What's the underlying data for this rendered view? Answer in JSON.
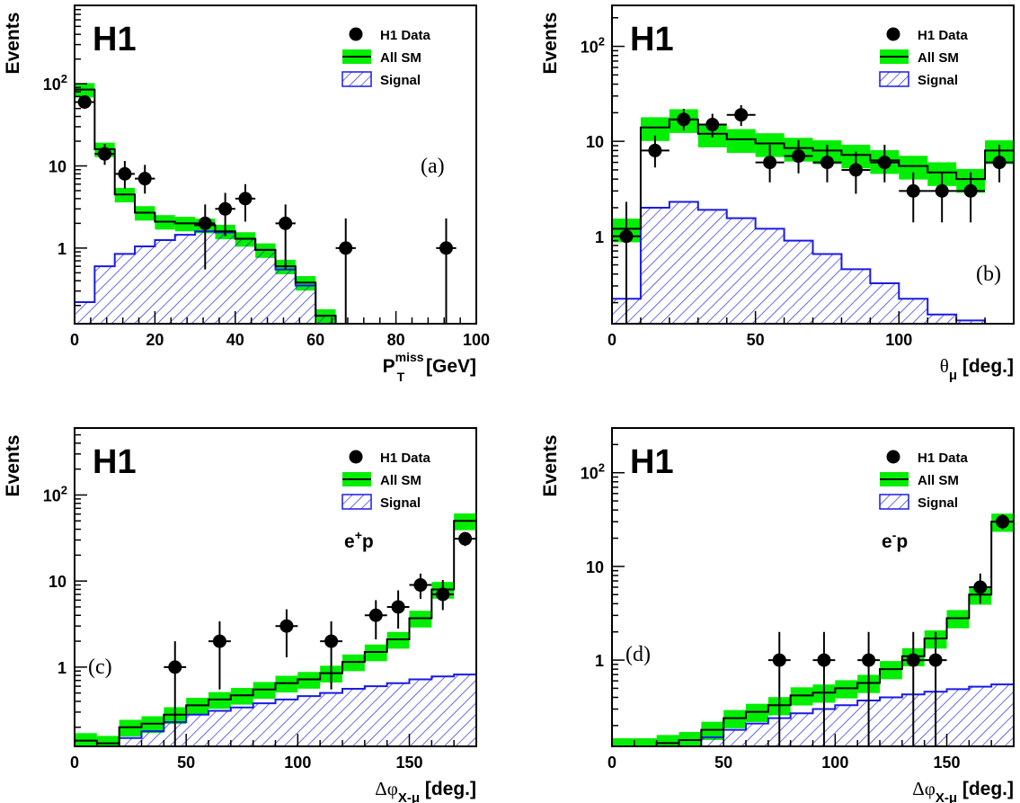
{
  "experiment_label": "H1",
  "legend": {
    "data": "H1 Data",
    "sm": "All SM",
    "signal": "Signal"
  },
  "colors": {
    "sm_band": "#00ee00",
    "signal_hatch": "#1a1ae6",
    "data": "#000000"
  },
  "chart_data": [
    {
      "type": "histogram",
      "panel_tag": "(a)",
      "ylabel": "Events",
      "xlabel_main": "P",
      "xlabel_sup": "miss",
      "xlabel_sub": "T",
      "xlabel_unit": " [GeV]",
      "y_scale": "log",
      "xlim": [
        0,
        100
      ],
      "ylim": [
        0.12,
        900
      ],
      "x_ticks": [
        0,
        20,
        40,
        60,
        80,
        100
      ],
      "x_tick_labels": [
        "0",
        "20",
        "40",
        "60",
        "80",
        "100"
      ],
      "y_ticks": [
        1,
        10,
        100
      ],
      "y_tick_labels": [
        "1",
        "10",
        "10^2"
      ],
      "bin_edges": [
        0,
        5,
        10,
        15,
        20,
        25,
        30,
        35,
        40,
        45,
        50,
        55,
        60,
        65,
        70,
        75,
        80,
        85,
        90,
        95,
        100
      ],
      "sm": [
        85,
        16,
        4.5,
        2.7,
        2.1,
        2.0,
        1.9,
        1.6,
        1.3,
        0.95,
        0.6,
        0.38,
        0.15,
        0.1,
        0.1,
        0.1,
        0.1,
        0.1,
        0.1,
        0.1
      ],
      "sm_err_frac": 0.2,
      "signal": [
        0.22,
        0.6,
        0.85,
        1.05,
        1.25,
        1.45,
        1.6,
        1.55,
        1.3,
        0.95,
        0.55,
        0.35,
        0.15,
        0.1,
        0.1,
        0.1,
        0.1,
        0.1,
        0.1,
        0.1
      ],
      "data_points": [
        {
          "x": 2.5,
          "y": 60,
          "lo": 50,
          "hi": 72
        },
        {
          "x": 7.5,
          "y": 14,
          "lo": 10.3,
          "hi": 18.5
        },
        {
          "x": 12.5,
          "y": 8,
          "lo": 5.3,
          "hi": 11.5
        },
        {
          "x": 17.5,
          "y": 7,
          "lo": 4.6,
          "hi": 10.3
        },
        {
          "x": 32.5,
          "y": 2,
          "lo": 0.55,
          "hi": 3.4
        },
        {
          "x": 37.5,
          "y": 3,
          "lo": 1.4,
          "hi": 4.7
        },
        {
          "x": 42.5,
          "y": 4,
          "lo": 2.1,
          "hi": 6.0
        },
        {
          "x": 52.5,
          "y": 2,
          "lo": 0.55,
          "hi": 3.4
        },
        {
          "x": 67.5,
          "y": 1,
          "lo": 0.12,
          "hi": 2.3
        },
        {
          "x": 92.5,
          "y": 1,
          "lo": 0.12,
          "hi": 2.3
        }
      ]
    },
    {
      "type": "histogram",
      "panel_tag": "(b)",
      "ylabel": "Events",
      "xlabel_main": "θ",
      "xlabel_sub": "μ",
      "xlabel_unit": " [deg.]",
      "y_scale": "log",
      "xlim": [
        0,
        140
      ],
      "ylim": [
        0.12,
        270
      ],
      "x_ticks": [
        0,
        50,
        100
      ],
      "x_tick_labels": [
        "0",
        "50",
        "100"
      ],
      "y_ticks": [
        1,
        10,
        100
      ],
      "y_tick_labels": [
        "1",
        "10",
        "10^2"
      ],
      "bin_edges": [
        0,
        10,
        20,
        30,
        40,
        50,
        60,
        70,
        80,
        90,
        100,
        110,
        120,
        130,
        140
      ],
      "sm": [
        1.2,
        14,
        17,
        12,
        10.5,
        9.5,
        8.5,
        8,
        7.2,
        6.3,
        5.5,
        4.7,
        4,
        8
      ],
      "sm_err_frac": 0.28,
      "signal": [
        0.22,
        2.0,
        2.3,
        1.9,
        1.55,
        1.2,
        0.9,
        0.65,
        0.45,
        0.32,
        0.22,
        0.15,
        0.13,
        0.12
      ],
      "data_points": [
        {
          "x": 5,
          "y": 1,
          "lo": 0.12,
          "hi": 2.3
        },
        {
          "x": 15,
          "y": 8,
          "lo": 5.3,
          "hi": 11.5
        },
        {
          "x": 25,
          "y": 17,
          "lo": 13,
          "hi": 22
        },
        {
          "x": 35,
          "y": 15,
          "lo": 11,
          "hi": 19.5
        },
        {
          "x": 45,
          "y": 19,
          "lo": 14.5,
          "hi": 24
        },
        {
          "x": 55,
          "y": 6,
          "lo": 3.7,
          "hi": 9.2
        },
        {
          "x": 65,
          "y": 7,
          "lo": 4.6,
          "hi": 10.3
        },
        {
          "x": 75,
          "y": 6,
          "lo": 3.7,
          "hi": 9.2
        },
        {
          "x": 85,
          "y": 5,
          "lo": 2.8,
          "hi": 7.8
        },
        {
          "x": 95,
          "y": 6,
          "lo": 3.7,
          "hi": 9.2
        },
        {
          "x": 105,
          "y": 3,
          "lo": 1.4,
          "hi": 4.7
        },
        {
          "x": 115,
          "y": 3,
          "lo": 1.4,
          "hi": 4.7
        },
        {
          "x": 125,
          "y": 3,
          "lo": 1.4,
          "hi": 4.7
        },
        {
          "x": 135,
          "y": 6,
          "lo": 3.7,
          "hi": 9.2
        }
      ]
    },
    {
      "type": "histogram",
      "panel_tag": "(c)",
      "beam_label_main": "e",
      "beam_label_sup": "+",
      "beam_label_tail": "p",
      "ylabel": "Events",
      "xlabel_main": "Δφ",
      "xlabel_sub": "X-μ",
      "xlabel_unit": " [deg.]",
      "y_scale": "log",
      "xlim": [
        0,
        180
      ],
      "ylim": [
        0.12,
        600
      ],
      "x_ticks": [
        0,
        50,
        100,
        150
      ],
      "x_tick_labels": [
        "0",
        "50",
        "100",
        "150"
      ],
      "y_ticks": [
        1,
        10,
        100
      ],
      "y_tick_labels": [
        "1",
        "10",
        "10^2"
      ],
      "bin_edges": [
        0,
        10,
        20,
        30,
        40,
        50,
        60,
        70,
        80,
        90,
        100,
        110,
        120,
        130,
        140,
        150,
        160,
        170,
        180
      ],
      "sm": [
        0.14,
        0.13,
        0.2,
        0.22,
        0.28,
        0.36,
        0.42,
        0.47,
        0.55,
        0.65,
        0.72,
        0.85,
        1.15,
        1.5,
        2.1,
        3.7,
        8,
        50
      ],
      "sm_err_frac": 0.22,
      "signal": [
        0.12,
        0.1,
        0.15,
        0.18,
        0.23,
        0.28,
        0.31,
        0.34,
        0.38,
        0.42,
        0.46,
        0.5,
        0.56,
        0.6,
        0.65,
        0.72,
        0.78,
        0.82
      ],
      "data_points": [
        {
          "x": 45,
          "y": 1,
          "lo": 0.12,
          "hi": 2.0
        },
        {
          "x": 65,
          "y": 2,
          "lo": 0.55,
          "hi": 3.4
        },
        {
          "x": 95,
          "y": 3,
          "lo": 1.3,
          "hi": 4.7
        },
        {
          "x": 115,
          "y": 2,
          "lo": 0.55,
          "hi": 3.4
        },
        {
          "x": 135,
          "y": 4,
          "lo": 2.1,
          "hi": 6.0
        },
        {
          "x": 145,
          "y": 5,
          "lo": 2.8,
          "hi": 7.8
        },
        {
          "x": 155,
          "y": 9,
          "lo": 6.2,
          "hi": 12.2
        },
        {
          "x": 165,
          "y": 7,
          "lo": 4.6,
          "hi": 10.3
        },
        {
          "x": 175,
          "y": 31,
          "lo": 25.5,
          "hi": 37
        }
      ]
    },
    {
      "type": "histogram",
      "panel_tag": "(d)",
      "beam_label_main": "e",
      "beam_label_sup": "-",
      "beam_label_tail": "p",
      "ylabel": "Events",
      "xlabel_main": "Δφ",
      "xlabel_sub": "X-μ",
      "xlabel_unit": " [deg.]",
      "y_scale": "log",
      "xlim": [
        0,
        180
      ],
      "ylim": [
        0.12,
        300
      ],
      "x_ticks": [
        0,
        50,
        100,
        150
      ],
      "x_tick_labels": [
        "0",
        "50",
        "100",
        "150"
      ],
      "y_ticks": [
        1,
        10,
        100
      ],
      "y_tick_labels": [
        "1",
        "10",
        "10^2"
      ],
      "bin_edges": [
        0,
        10,
        20,
        30,
        40,
        50,
        60,
        70,
        80,
        90,
        100,
        110,
        120,
        130,
        140,
        150,
        160,
        170,
        180
      ],
      "sm": [
        0.12,
        0.12,
        0.13,
        0.14,
        0.18,
        0.24,
        0.28,
        0.33,
        0.42,
        0.45,
        0.5,
        0.57,
        0.8,
        1.1,
        1.7,
        2.8,
        5,
        30
      ],
      "sm_err_frac": 0.22,
      "signal": [
        0.12,
        0.12,
        0.12,
        0.12,
        0.15,
        0.18,
        0.21,
        0.24,
        0.27,
        0.3,
        0.33,
        0.37,
        0.4,
        0.43,
        0.46,
        0.49,
        0.52,
        0.55
      ],
      "data_points": [
        {
          "x": 75,
          "y": 1,
          "lo": 0.12,
          "hi": 2.0
        },
        {
          "x": 95,
          "y": 1,
          "lo": 0.12,
          "hi": 2.0
        },
        {
          "x": 115,
          "y": 1,
          "lo": 0.12,
          "hi": 2.0
        },
        {
          "x": 135,
          "y": 1,
          "lo": 0.12,
          "hi": 2.0
        },
        {
          "x": 145,
          "y": 1,
          "lo": 0.12,
          "hi": 2.0
        },
        {
          "x": 165,
          "y": 6,
          "lo": 4.0,
          "hi": 8.4
        },
        {
          "x": 175,
          "y": 30,
          "lo": 25,
          "hi": 36
        }
      ]
    }
  ]
}
